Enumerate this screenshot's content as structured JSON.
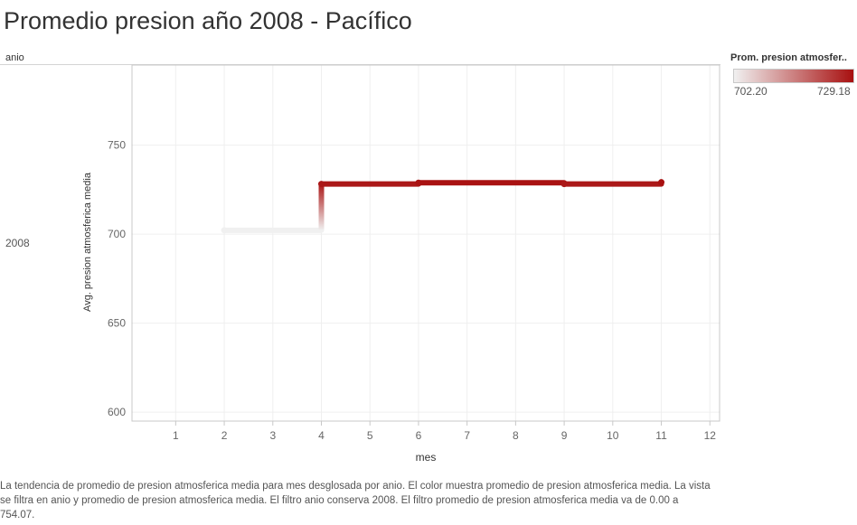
{
  "title": "Promedio presion año 2008 - Pacífico",
  "row_header": "anio",
  "legend": {
    "title": "Prom. presion atmosfer..",
    "min_label": "702.20",
    "max_label": "729.18",
    "color_low": "#f0f0f0",
    "color_high": "#a81010"
  },
  "caption": "La tendencia de promedio de presion atmosferica media para mes desglosada por anio.  El color muestra promedio de presion atmosferica media. La vista se filtra en anio y promedio de presion atmosferica media. El filtro anio conserva 2008. El filtro promedio de presion atmosferica media va de 0.00 a 754.07.",
  "chart_data": {
    "type": "line",
    "step": true,
    "row_label": "2008",
    "xlabel": "mes",
    "ylabel": "Avg. presion atmosferica media",
    "xlim": [
      0.1,
      12.2
    ],
    "ylim": [
      595,
      795
    ],
    "x_ticks": [
      1,
      2,
      3,
      4,
      5,
      6,
      7,
      8,
      9,
      10,
      11,
      12
    ],
    "y_ticks": [
      600,
      650,
      700,
      750
    ],
    "grid": true,
    "points": [
      {
        "x": 2,
        "y": 702.2
      },
      {
        "x": 4,
        "y": 728.2
      },
      {
        "x": 6,
        "y": 728.9
      },
      {
        "x": 9,
        "y": 728.2
      },
      {
        "x": 11,
        "y": 729.18
      }
    ]
  }
}
